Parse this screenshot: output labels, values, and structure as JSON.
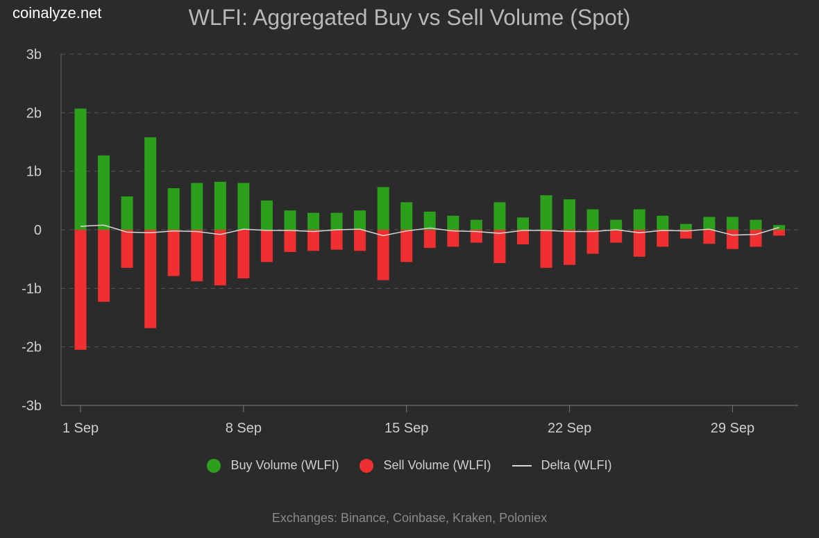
{
  "brand": "coinalyze.net",
  "footer": "Exchanges: Binance, Coinbase, Kraken, Poloniex",
  "colors": {
    "buy": "#2ca01c",
    "sell": "#f03030",
    "delta": "#d8d8d8",
    "background": "#2b2b2b",
    "grid": "#555555",
    "text": "#cfcfcf"
  },
  "chart_data": {
    "type": "bar",
    "title": "WLFI: Aggregated Buy vs Sell Volume (Spot)",
    "ylim": [
      -3,
      3
    ],
    "yticks": [
      3,
      2,
      1,
      0,
      -1,
      -2,
      -3
    ],
    "ytick_labels": [
      "3b",
      "2b",
      "1b",
      "0",
      "-1b",
      "-2b",
      "-3b"
    ],
    "xticks": [
      {
        "day": 1,
        "label": "1 Sep"
      },
      {
        "day": 8,
        "label": "8 Sep"
      },
      {
        "day": 15,
        "label": "15 Sep"
      },
      {
        "day": 22,
        "label": "22 Sep"
      },
      {
        "day": 29,
        "label": "29 Sep"
      }
    ],
    "grid": true,
    "legend_position": "bottom",
    "categories": [
      1,
      2,
      3,
      4,
      5,
      6,
      7,
      8,
      9,
      10,
      11,
      12,
      13,
      14,
      15,
      16,
      17,
      18,
      19,
      20,
      21,
      22,
      23,
      24,
      25,
      26,
      27,
      28,
      29,
      30,
      31
    ],
    "series": [
      {
        "name": "Buy Volume (WLFI)",
        "values": [
          2.07,
          1.27,
          0.57,
          1.58,
          0.71,
          0.8,
          0.82,
          0.8,
          0.5,
          0.33,
          0.29,
          0.29,
          0.33,
          0.73,
          0.47,
          0.31,
          0.24,
          0.17,
          0.47,
          0.21,
          0.59,
          0.52,
          0.35,
          0.17,
          0.35,
          0.24,
          0.1,
          0.22,
          0.22,
          0.17,
          0.08
        ]
      },
      {
        "name": "Sell Volume (WLFI)",
        "values": [
          -2.05,
          -1.23,
          -0.65,
          -1.68,
          -0.79,
          -0.88,
          -0.95,
          -0.83,
          -0.55,
          -0.38,
          -0.36,
          -0.34,
          -0.36,
          -0.86,
          -0.55,
          -0.31,
          -0.29,
          -0.22,
          -0.57,
          -0.25,
          -0.65,
          -0.6,
          -0.41,
          -0.22,
          -0.46,
          -0.29,
          -0.15,
          -0.24,
          -0.33,
          -0.29,
          -0.1
        ]
      },
      {
        "name": "Delta (WLFI)",
        "values": [
          0.06,
          0.08,
          -0.04,
          -0.05,
          -0.02,
          -0.03,
          -0.08,
          0.01,
          -0.01,
          -0.01,
          -0.03,
          0.0,
          0.01,
          -0.1,
          -0.02,
          0.03,
          -0.02,
          -0.03,
          -0.06,
          -0.01,
          -0.01,
          -0.03,
          -0.03,
          0.0,
          -0.05,
          -0.01,
          -0.02,
          0.01,
          -0.09,
          -0.08,
          0.04
        ]
      }
    ]
  }
}
